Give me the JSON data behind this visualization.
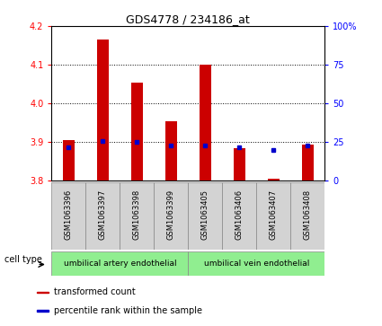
{
  "title": "GDS4778 / 234186_at",
  "samples": [
    "GSM1063396",
    "GSM1063397",
    "GSM1063398",
    "GSM1063399",
    "GSM1063405",
    "GSM1063406",
    "GSM1063407",
    "GSM1063408"
  ],
  "transformed_counts": [
    3.905,
    4.165,
    4.055,
    3.955,
    4.1,
    3.885,
    3.805,
    3.895
  ],
  "percentile_ranks": [
    22,
    26,
    25,
    23,
    23,
    22,
    20,
    23
  ],
  "ylim_left": [
    3.8,
    4.2
  ],
  "ylim_right": [
    0,
    100
  ],
  "yticks_left": [
    3.8,
    3.9,
    4.0,
    4.1,
    4.2
  ],
  "yticks_right": [
    0,
    25,
    50,
    75,
    100
  ],
  "bar_bottom": 3.8,
  "bar_color": "#cc0000",
  "percentile_color": "#0000cc",
  "cell_types": [
    "umbilical artery endothelial",
    "umbilical vein endothelial"
  ],
  "cell_type_bg": "#90ee90",
  "sample_bg": "#d3d3d3",
  "legend_items": [
    "transformed count",
    "percentile rank within the sample"
  ],
  "legend_colors": [
    "#cc0000",
    "#0000cc"
  ],
  "gridline_ticks": [
    3.9,
    4.0,
    4.1
  ]
}
